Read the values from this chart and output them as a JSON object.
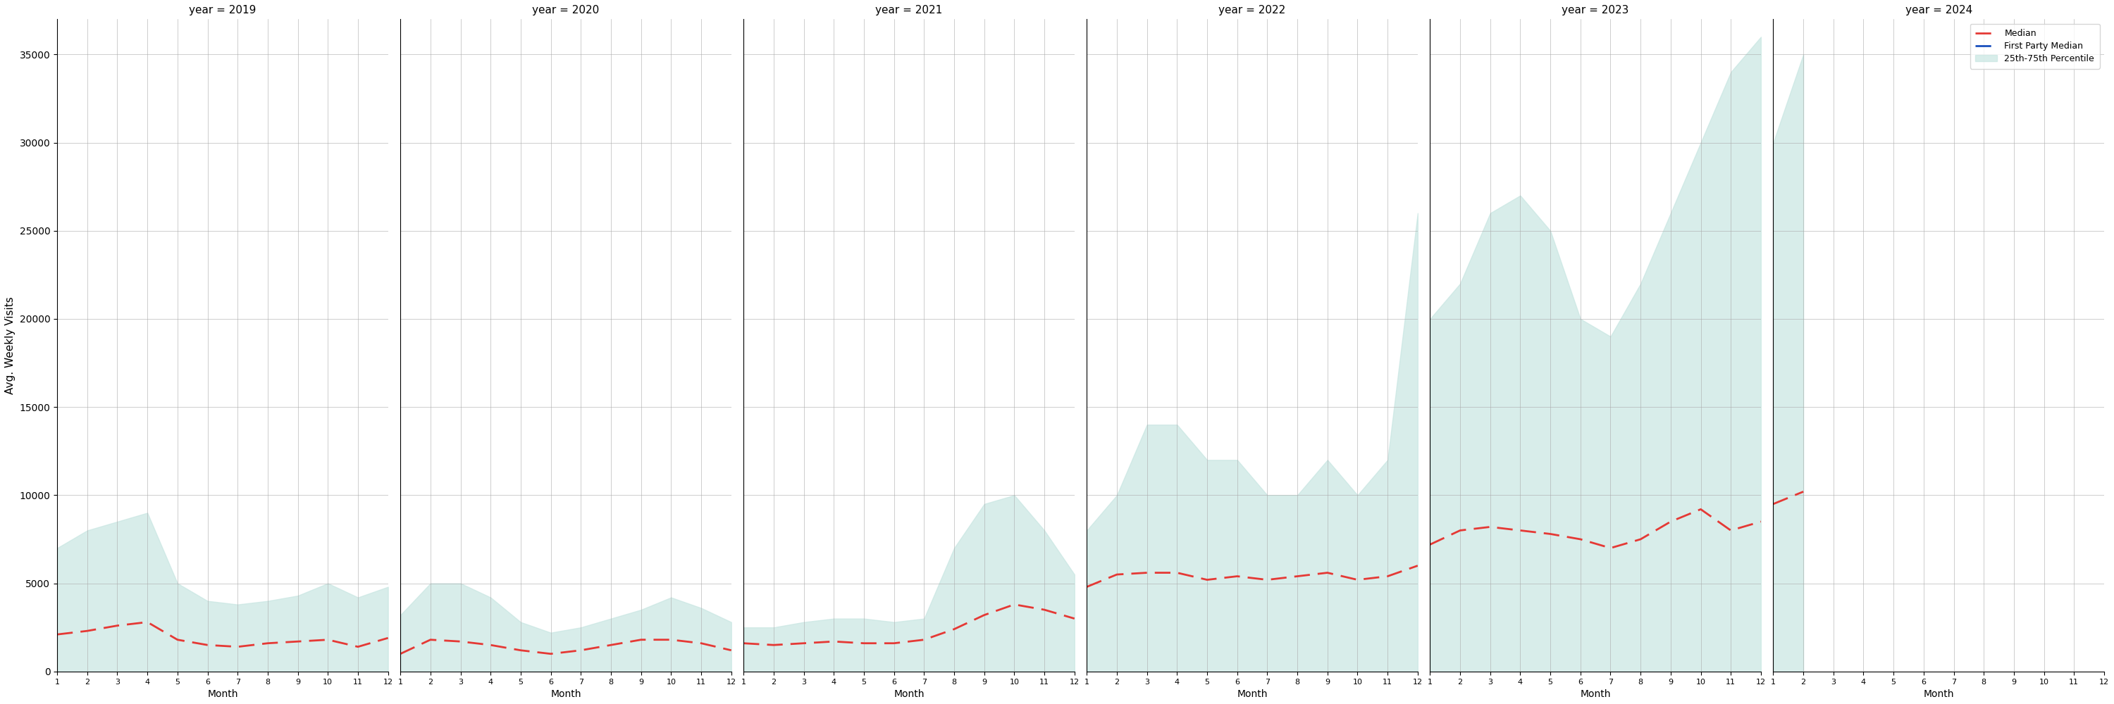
{
  "years": [
    "2019",
    "2020",
    "2021",
    "2022",
    "2023",
    "2024"
  ],
  "ylabel": "Avg. Weekly Visits",
  "xlabel": "Month",
  "ylim": [
    0,
    37000
  ],
  "yticks": [
    0,
    5000,
    10000,
    15000,
    20000,
    25000,
    30000,
    35000
  ],
  "fill_color": "#c8e6e2",
  "fill_alpha": 0.7,
  "median_color": "#e53935",
  "fp_median_color": "#1a4fbd",
  "title_fontsize": 11,
  "legend_labels": [
    "Median",
    "First Party Median",
    "25th-75th Percentile"
  ],
  "years_data": {
    "2019": {
      "months": [
        1,
        2,
        3,
        4,
        5,
        6,
        7,
        8,
        9,
        10,
        11,
        12
      ],
      "median": [
        2100,
        2300,
        2600,
        2800,
        1800,
        1500,
        1400,
        1600,
        1700,
        1800,
        1400,
        1900
      ],
      "p25": [
        0,
        0,
        0,
        0,
        0,
        0,
        0,
        0,
        0,
        0,
        0,
        0
      ],
      "p75": [
        7000,
        8000,
        8500,
        9000,
        5000,
        4000,
        3800,
        4000,
        4300,
        5000,
        4200,
        4800
      ]
    },
    "2020": {
      "months": [
        1,
        2,
        3,
        4,
        5,
        6,
        7,
        8,
        9,
        10,
        11,
        12
      ],
      "median": [
        1000,
        1800,
        1700,
        1500,
        1200,
        1000,
        1200,
        1500,
        1800,
        1800,
        1600,
        1200
      ],
      "p25": [
        0,
        0,
        0,
        0,
        0,
        0,
        0,
        0,
        0,
        0,
        0,
        0
      ],
      "p75": [
        3200,
        5000,
        5000,
        4200,
        2800,
        2200,
        2500,
        3000,
        3500,
        4200,
        3600,
        2800
      ]
    },
    "2021": {
      "months": [
        1,
        2,
        3,
        4,
        5,
        6,
        7,
        8,
        9,
        10,
        11,
        12
      ],
      "median": [
        1600,
        1500,
        1600,
        1700,
        1600,
        1600,
        1800,
        2400,
        3200,
        3800,
        3500,
        3000
      ],
      "p25": [
        0,
        0,
        0,
        0,
        0,
        0,
        0,
        0,
        0,
        0,
        0,
        0
      ],
      "p75": [
        2500,
        2500,
        2800,
        3000,
        3000,
        2800,
        3000,
        7000,
        9500,
        10000,
        8000,
        5500
      ]
    },
    "2022": {
      "months": [
        1,
        2,
        3,
        4,
        5,
        6,
        7,
        8,
        9,
        10,
        11,
        12
      ],
      "median": [
        4800,
        5500,
        5600,
        5600,
        5200,
        5400,
        5200,
        5400,
        5600,
        5200,
        5400,
        6000
      ],
      "p25": [
        0,
        0,
        0,
        0,
        0,
        0,
        0,
        0,
        0,
        0,
        0,
        0
      ],
      "p75": [
        8000,
        10000,
        14000,
        14000,
        12000,
        12000,
        10000,
        10000,
        12000,
        10000,
        12000,
        26000
      ]
    },
    "2023": {
      "months": [
        1,
        2,
        3,
        4,
        5,
        6,
        7,
        8,
        9,
        10,
        11,
        12
      ],
      "median": [
        7200,
        8000,
        8200,
        8000,
        7800,
        7500,
        7000,
        7500,
        8500,
        9200,
        8000,
        8500
      ],
      "p25": [
        0,
        0,
        0,
        0,
        0,
        0,
        0,
        0,
        0,
        0,
        0,
        0
      ],
      "p75": [
        20000,
        22000,
        26000,
        27000,
        25000,
        20000,
        19000,
        22000,
        26000,
        30000,
        34000,
        36000
      ]
    },
    "2024": {
      "months": [
        1,
        2
      ],
      "median": [
        9500,
        10200
      ],
      "p25": [
        0,
        0
      ],
      "p75": [
        30000,
        35000
      ]
    }
  }
}
